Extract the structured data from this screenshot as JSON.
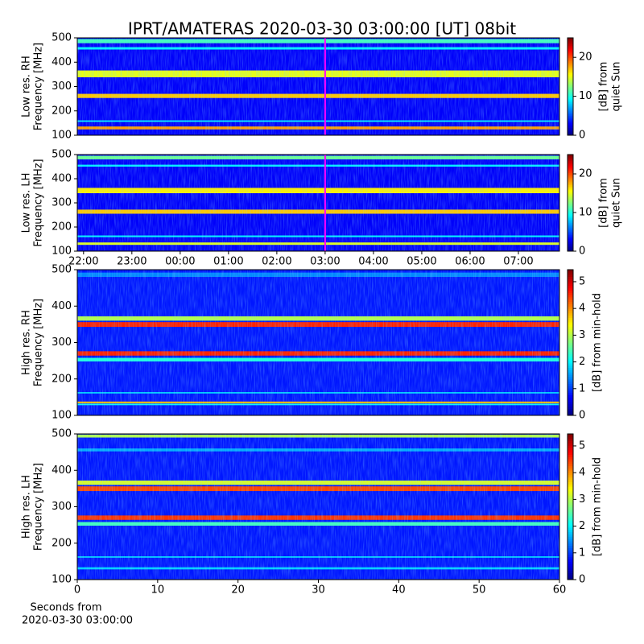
{
  "chart_data": [
    {
      "type": "spectrogram",
      "title": "IPRT/AMATERAS 2020-03-30 03:00:00 [UT]   08bit",
      "ylabel": [
        "Low res. RH",
        "Frequency [MHz]"
      ],
      "ylim": [
        100,
        500
      ],
      "yticks": [
        100,
        200,
        300,
        400,
        500
      ],
      "xlim": [
        21.87,
        31.85
      ],
      "marker_x": 27,
      "marker_color": "#ff00ff",
      "colormap": "jet",
      "clim": [
        0,
        25
      ],
      "cticks": [
        0,
        10,
        20
      ],
      "colorbar_label": [
        "[dB] from",
        "quiet Sun"
      ],
      "background": 3,
      "bands": [
        {
          "low": 124,
          "high": 136,
          "level": 18
        },
        {
          "low": 155,
          "high": 161,
          "level": 9
        },
        {
          "low": 253,
          "high": 270,
          "level": 17
        },
        {
          "low": 338,
          "high": 366,
          "level": 15
        },
        {
          "low": 452,
          "high": 462,
          "level": 9
        },
        {
          "low": 478,
          "high": 495,
          "level": 11
        }
      ]
    },
    {
      "type": "spectrogram",
      "ylabel": [
        "Low res. LH",
        "Frequency [MHz]"
      ],
      "ylim": [
        100,
        500
      ],
      "yticks": [
        100,
        200,
        300,
        400,
        500
      ],
      "xlim": [
        21.87,
        31.85
      ],
      "marker_x": 27,
      "marker_color": "#ff00ff",
      "xticks": [
        {
          "value": 22,
          "label": "22:00"
        },
        {
          "value": 23,
          "label": "23:00"
        },
        {
          "value": 24,
          "label": "00:00"
        },
        {
          "value": 25,
          "label": "01:00"
        },
        {
          "value": 26,
          "label": "02:00"
        },
        {
          "value": 27,
          "label": "03:00"
        },
        {
          "value": 28,
          "label": "04:00"
        },
        {
          "value": 29,
          "label": "05:00"
        },
        {
          "value": 30,
          "label": "06:00"
        },
        {
          "value": 31,
          "label": "07:00"
        }
      ],
      "colormap": "jet",
      "clim": [
        0,
        25
      ],
      "cticks": [
        0,
        10,
        20
      ],
      "colorbar_label": [
        "[dB] from",
        "quiet Sun"
      ],
      "background": 3,
      "bands": [
        {
          "low": 126,
          "high": 136,
          "level": 15
        },
        {
          "low": 158,
          "high": 165,
          "level": 9
        },
        {
          "low": 255,
          "high": 272,
          "level": 17
        },
        {
          "low": 340,
          "high": 362,
          "level": 16
        },
        {
          "low": 450,
          "high": 458,
          "level": 9
        },
        {
          "low": 480,
          "high": 495,
          "level": 12
        }
      ]
    },
    {
      "type": "spectrogram",
      "ylabel": [
        "High res. RH",
        "Frequency [MHz]"
      ],
      "ylim": [
        100,
        500
      ],
      "yticks": [
        100,
        200,
        300,
        400,
        500
      ],
      "xlim": [
        0,
        60
      ],
      "colormap": "jet",
      "clim": [
        0,
        5.45
      ],
      "cticks": [
        0,
        1,
        2,
        3,
        4,
        5
      ],
      "colorbar_label": [
        "[dB] from min-hold"
      ],
      "background": 0.8,
      "bands": [
        {
          "low": 128,
          "high": 132,
          "level": 2
        },
        {
          "low": 133,
          "high": 138,
          "level": 3.8
        },
        {
          "low": 160,
          "high": 164,
          "level": 1.8
        },
        {
          "low": 248,
          "high": 258,
          "level": 2.2
        },
        {
          "low": 264,
          "high": 276,
          "level": 4.6
        },
        {
          "low": 343,
          "high": 356,
          "level": 4.6
        },
        {
          "low": 360,
          "high": 372,
          "level": 3
        },
        {
          "low": 480,
          "high": 492,
          "level": 1.4
        }
      ]
    },
    {
      "type": "spectrogram",
      "ylabel": [
        "High res. LH",
        "Frequency [MHz]"
      ],
      "ylim": [
        100,
        500
      ],
      "yticks": [
        100,
        200,
        300,
        400,
        500
      ],
      "xlim": [
        0,
        60
      ],
      "xticks": [
        0,
        10,
        20,
        30,
        40,
        50,
        60
      ],
      "xlabel": [
        "Seconds from",
        "2020-03-30 03:00:00"
      ],
      "colormap": "jet",
      "clim": [
        0,
        5.45
      ],
      "cticks": [
        0,
        1,
        2,
        3,
        4,
        5
      ],
      "colorbar_label": [
        "[dB] from min-hold"
      ],
      "background": 0.8,
      "bands": [
        {
          "low": 128,
          "high": 134,
          "level": 1.8
        },
        {
          "low": 160,
          "high": 164,
          "level": 1.8
        },
        {
          "low": 248,
          "high": 258,
          "level": 2.4
        },
        {
          "low": 264,
          "high": 276,
          "level": 4.5
        },
        {
          "low": 343,
          "high": 356,
          "level": 4.4
        },
        {
          "low": 360,
          "high": 372,
          "level": 3.2
        },
        {
          "low": 452,
          "high": 460,
          "level": 1.6
        },
        {
          "low": 490,
          "high": 498,
          "level": 3
        }
      ]
    }
  ]
}
